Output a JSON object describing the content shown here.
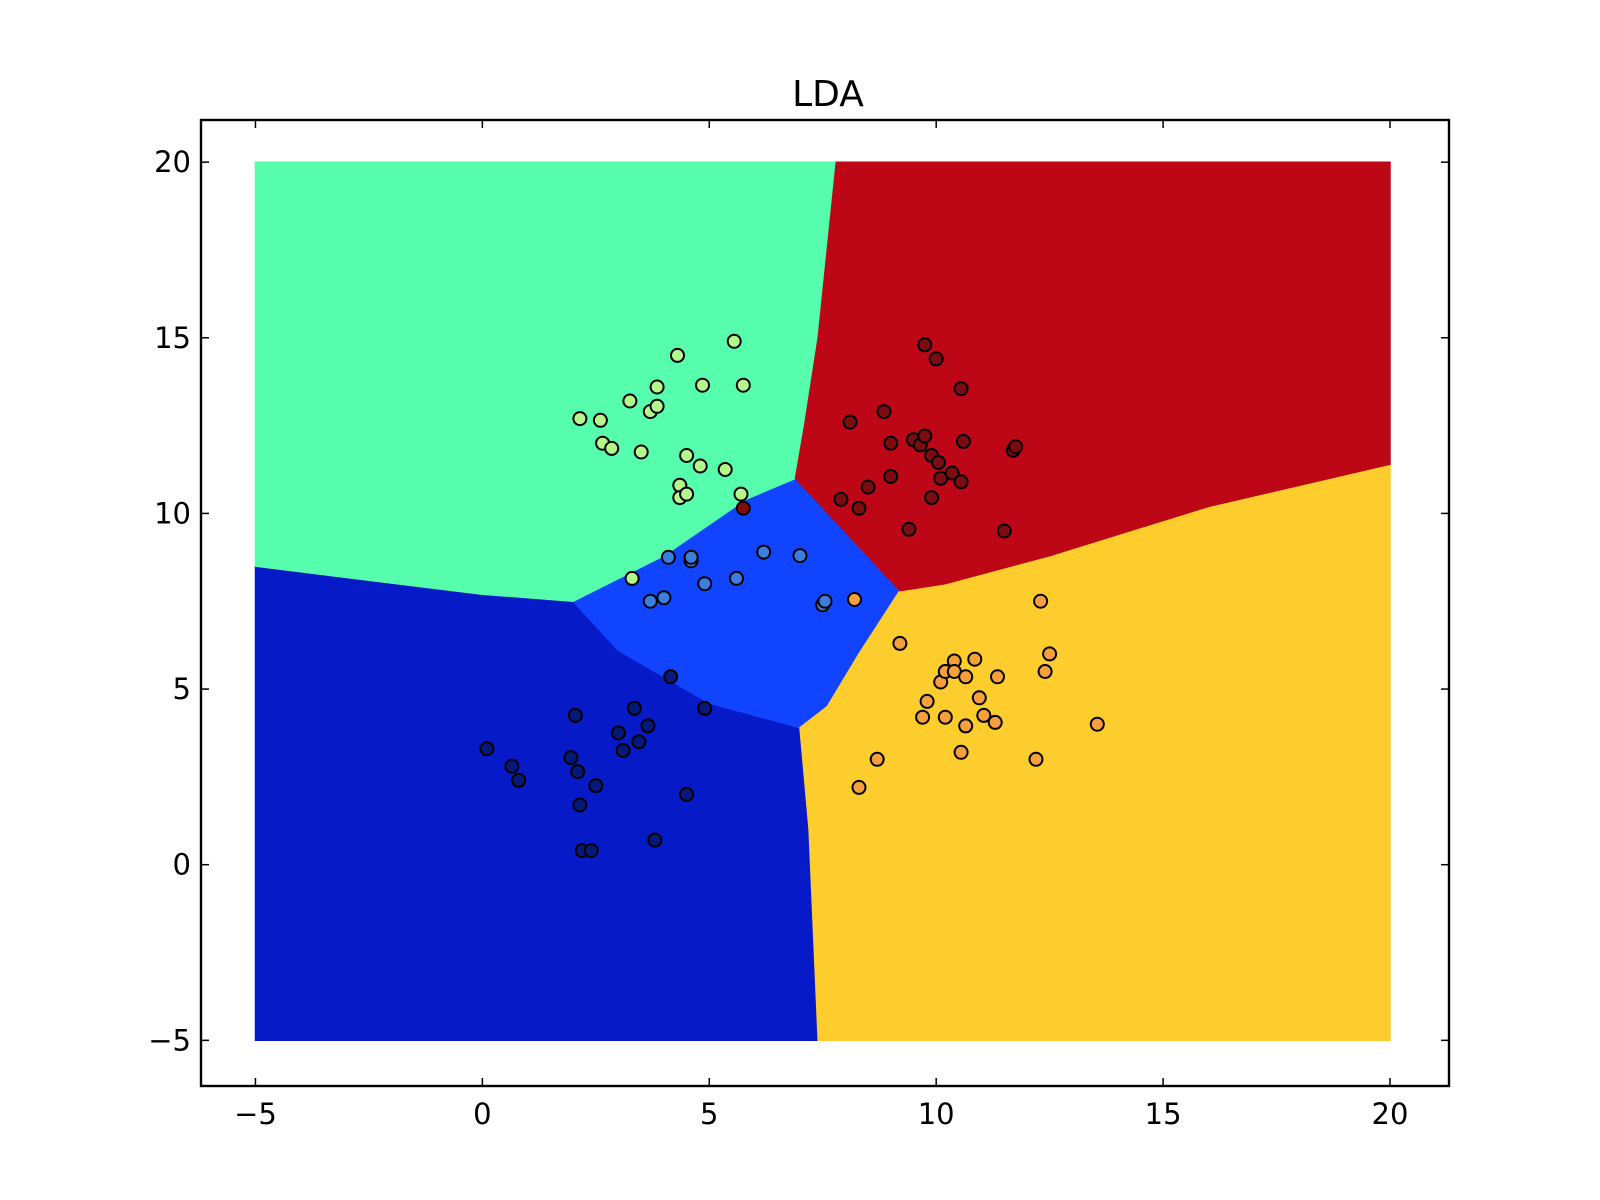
{
  "chart_data": {
    "type": "scatter",
    "title": "LDA",
    "xlabel": "",
    "ylabel": "",
    "xlim": [
      -6.2,
      21.3
    ],
    "ylim": [
      -6.3,
      21.2
    ],
    "xticks": [
      -5,
      0,
      5,
      10,
      15,
      20
    ],
    "yticks": [
      -5,
      0,
      5,
      10,
      15,
      20
    ],
    "xtick_labels": [
      "−5",
      "0",
      "5",
      "10",
      "15",
      "20"
    ],
    "ytick_labels": [
      "−5",
      "0",
      "5",
      "10",
      "15",
      "20"
    ],
    "grid": false,
    "legend": "none",
    "background": {
      "type": "decision_regions",
      "extent": {
        "x": [
          -5,
          20
        ],
        "y": [
          -5,
          20
        ]
      },
      "regions": [
        {
          "class": "0",
          "color": "#061ac8",
          "polygon": [
            [
              -5,
              -5
            ],
            [
              7.4,
              -5
            ],
            [
              7.2,
              1
            ],
            [
              7,
              3.9
            ],
            [
              5,
              4.6
            ],
            [
              3,
              6.1
            ],
            [
              2,
              7.5
            ],
            [
              0,
              7.7
            ],
            [
              -2.5,
              8.1
            ],
            [
              -5,
              8.5
            ]
          ]
        },
        {
          "class": "1",
          "color": "#1144ff",
          "polygon": [
            [
              2,
              7.5
            ],
            [
              4,
              8.8
            ],
            [
              5.8,
              10.4
            ],
            [
              6.9,
              11
            ],
            [
              9.2,
              7.8
            ],
            [
              8.3,
              6
            ],
            [
              7.6,
              4.5
            ],
            [
              7,
              3.9
            ],
            [
              5,
              4.6
            ],
            [
              3,
              6.1
            ]
          ]
        },
        {
          "class": "2",
          "color": "#56fdac",
          "polygon": [
            [
              -5,
              8.5
            ],
            [
              -2.5,
              8.1
            ],
            [
              0,
              7.7
            ],
            [
              2,
              7.5
            ],
            [
              4,
              8.8
            ],
            [
              5.8,
              10.4
            ],
            [
              6.9,
              11
            ],
            [
              7.1,
              12.5
            ],
            [
              7.4,
              15
            ],
            [
              7.8,
              20
            ],
            [
              -5,
              20
            ]
          ]
        },
        {
          "class": "3",
          "color": "#fdcd2e",
          "polygon": [
            [
              7.4,
              -5
            ],
            [
              20,
              -5
            ],
            [
              20,
              11.4
            ],
            [
              16,
              10.2
            ],
            [
              12.5,
              8.8
            ],
            [
              10.2,
              8
            ],
            [
              9.2,
              7.8
            ],
            [
              8.3,
              6
            ],
            [
              7.6,
              4.5
            ],
            [
              7,
              3.9
            ],
            [
              7.2,
              1
            ]
          ]
        },
        {
          "class": "4",
          "color": "#bd0716",
          "polygon": [
            [
              7.8,
              20
            ],
            [
              20,
              20
            ],
            [
              20,
              11.4
            ],
            [
              16,
              10.2
            ],
            [
              12.5,
              8.8
            ],
            [
              10.2,
              8
            ],
            [
              9.2,
              7.8
            ],
            [
              6.9,
              11
            ],
            [
              7.1,
              12.5
            ],
            [
              7.4,
              15
            ]
          ]
        }
      ]
    },
    "series": [
      {
        "class": "0",
        "color": "#04197a",
        "points": [
          [
            0.1,
            3.3
          ],
          [
            0.65,
            2.8
          ],
          [
            0.8,
            2.4
          ],
          [
            2.05,
            4.25
          ],
          [
            1.95,
            3.05
          ],
          [
            2.1,
            2.65
          ],
          [
            2.5,
            2.25
          ],
          [
            2.15,
            1.7
          ],
          [
            2.2,
            0.4
          ],
          [
            2.4,
            0.4
          ],
          [
            3.0,
            3.75
          ],
          [
            3.1,
            3.25
          ],
          [
            3.35,
            4.45
          ],
          [
            3.45,
            3.5
          ],
          [
            3.65,
            3.95
          ],
          [
            3.8,
            0.7
          ],
          [
            4.15,
            5.35
          ],
          [
            4.5,
            2.0
          ],
          [
            4.9,
            4.45
          ]
        ]
      },
      {
        "class": "1",
        "color": "#3a7fe0",
        "points": [
          [
            3.7,
            7.5
          ],
          [
            4.0,
            7.6
          ],
          [
            4.1,
            8.75
          ],
          [
            4.6,
            8.65
          ],
          [
            4.6,
            8.75
          ],
          [
            4.9,
            8.0
          ],
          [
            5.6,
            8.15
          ],
          [
            6.2,
            8.9
          ],
          [
            7.0,
            8.8
          ],
          [
            7.5,
            7.4
          ],
          [
            7.55,
            7.5
          ]
        ]
      },
      {
        "class": "2",
        "color": "#b4f88b",
        "points": [
          [
            2.15,
            12.7
          ],
          [
            2.6,
            12.65
          ],
          [
            2.65,
            12.0
          ],
          [
            2.85,
            11.85
          ],
          [
            3.25,
            13.2
          ],
          [
            3.5,
            11.75
          ],
          [
            3.7,
            12.9
          ],
          [
            3.85,
            13.6
          ],
          [
            3.85,
            13.05
          ],
          [
            4.3,
            14.5
          ],
          [
            4.35,
            10.8
          ],
          [
            4.35,
            10.45
          ],
          [
            4.5,
            10.55
          ],
          [
            4.5,
            11.65
          ],
          [
            4.8,
            11.35
          ],
          [
            4.85,
            13.65
          ],
          [
            5.35,
            11.25
          ],
          [
            5.55,
            14.9
          ],
          [
            5.75,
            13.65
          ],
          [
            5.7,
            10.55
          ],
          [
            3.3,
            8.15
          ]
        ]
      },
      {
        "class": "3",
        "color": "#f6a03d",
        "points": [
          [
            8.2,
            7.55
          ],
          [
            9.2,
            6.3
          ],
          [
            8.7,
            3.0
          ],
          [
            8.3,
            2.2
          ],
          [
            9.7,
            4.2
          ],
          [
            9.8,
            4.65
          ],
          [
            10.1,
            5.2
          ],
          [
            10.2,
            5.5
          ],
          [
            10.2,
            4.2
          ],
          [
            10.4,
            5.8
          ],
          [
            10.4,
            5.5
          ],
          [
            10.55,
            3.2
          ],
          [
            10.65,
            5.35
          ],
          [
            10.65,
            3.95
          ],
          [
            10.85,
            5.85
          ],
          [
            10.95,
            4.75
          ],
          [
            11.05,
            4.25
          ],
          [
            11.3,
            4.05
          ],
          [
            11.35,
            5.35
          ],
          [
            12.2,
            3.0
          ],
          [
            12.3,
            7.5
          ],
          [
            12.4,
            5.5
          ],
          [
            12.5,
            6.0
          ],
          [
            13.55,
            4.0
          ]
        ]
      },
      {
        "class": "4",
        "color": "#7c0c10",
        "points": [
          [
            5.75,
            10.15
          ],
          [
            7.9,
            10.4
          ],
          [
            8.1,
            12.6
          ],
          [
            8.3,
            10.15
          ],
          [
            8.5,
            10.75
          ],
          [
            8.85,
            12.9
          ],
          [
            9.0,
            12.0
          ],
          [
            9.0,
            11.05
          ],
          [
            9.4,
            9.55
          ],
          [
            9.5,
            12.1
          ],
          [
            9.65,
            11.95
          ],
          [
            9.75,
            12.2
          ],
          [
            9.75,
            14.8
          ],
          [
            9.9,
            11.65
          ],
          [
            9.9,
            10.45
          ],
          [
            10.0,
            14.4
          ],
          [
            10.05,
            11.45
          ],
          [
            10.1,
            11.0
          ],
          [
            10.35,
            11.15
          ],
          [
            10.55,
            13.55
          ],
          [
            10.55,
            10.9
          ],
          [
            10.6,
            12.05
          ],
          [
            11.5,
            9.5
          ],
          [
            11.7,
            11.8
          ],
          [
            11.75,
            11.9
          ]
        ]
      }
    ]
  }
}
